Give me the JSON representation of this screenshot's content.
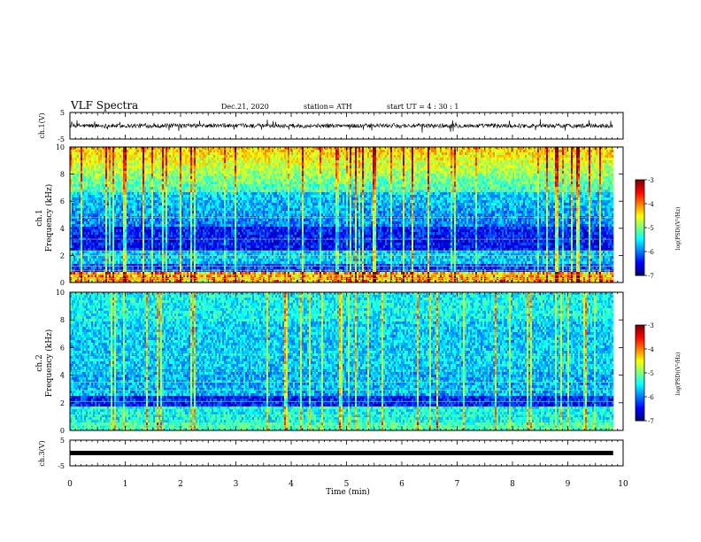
{
  "header": {
    "title": "VLF Spectra",
    "date": "Dec.21, 2020",
    "station": "station= ATH",
    "start": "start  UT =  4 : 30 : 1"
  },
  "chart_data": [
    {
      "type": "line",
      "name": "waveform-ch1",
      "ylabel": "ch.1(V)",
      "ylim": [
        -5,
        5
      ],
      "yticks": [
        "5",
        "-5"
      ],
      "xlim": [
        0,
        10
      ]
    },
    {
      "type": "heatmap",
      "name": "spectrogram-ch1",
      "ylabel_top": "ch.1",
      "ylabel": "Frequency (kHz)",
      "ylim": [
        0,
        10
      ],
      "yticks": [
        "0",
        "2",
        "4",
        "6",
        "8",
        "10"
      ],
      "xlim": [
        0,
        10
      ],
      "colorbar": {
        "label": "log(PSD)(V²/Hz)",
        "range": [
          -7,
          -3
        ],
        "ticks": [
          "-3",
          "-4",
          "-5",
          "-6",
          "-7"
        ]
      }
    },
    {
      "type": "heatmap",
      "name": "spectrogram-ch2",
      "ylabel_top": "ch.2",
      "ylabel": "Frequency (kHz)",
      "ylim": [
        0,
        10
      ],
      "yticks": [
        "0",
        "2",
        "4",
        "6",
        "8",
        "10"
      ],
      "xlim": [
        0,
        10
      ],
      "colorbar": {
        "label": "log(PSD)(V²/Hz)",
        "range": [
          -7,
          -3
        ],
        "ticks": [
          "-3",
          "-4",
          "-5",
          "-6",
          "-7"
        ]
      }
    },
    {
      "type": "line",
      "name": "waveform-ch3",
      "ylabel": "ch.3(V)",
      "ylim": [
        -5,
        5
      ],
      "yticks": [
        "5",
        "-5"
      ],
      "xlim": [
        0,
        10
      ],
      "xlabel": "Time (min)",
      "xticks": [
        "0",
        "1",
        "2",
        "3",
        "4",
        "5",
        "6",
        "7",
        "8",
        "9",
        "10"
      ]
    }
  ]
}
